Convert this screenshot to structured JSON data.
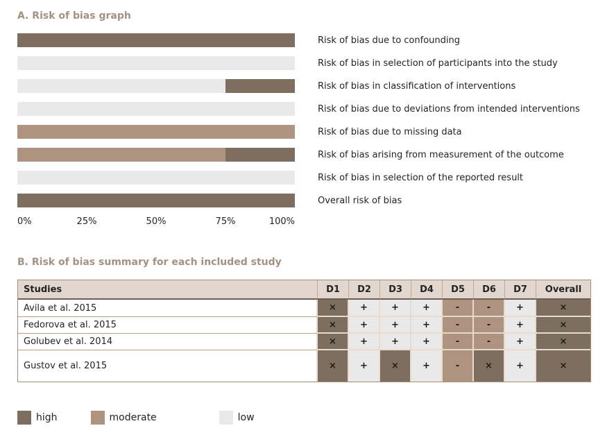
{
  "colors": {
    "high": "#7e6e5f",
    "moderate": "#ae9480",
    "low": "#e9e9e9",
    "header_bg": "#e1d7cf",
    "title_text": "#a39181",
    "body_text": "#232323"
  },
  "section_a": {
    "title": "A. Risk of bias graph",
    "axis_ticks": [
      "0%",
      "25%",
      "50%",
      "75%",
      "100%"
    ],
    "bars": [
      {
        "label": "Risk of bias due to confounding",
        "segments": [
          {
            "level": "high",
            "pct": 100
          }
        ]
      },
      {
        "label": "Risk of bias in selection of participants into the study",
        "segments": [
          {
            "level": "low",
            "pct": 100
          }
        ]
      },
      {
        "label": "Risk of bias in classification of interventions",
        "segments": [
          {
            "level": "low",
            "pct": 75
          },
          {
            "level": "high",
            "pct": 25
          }
        ]
      },
      {
        "label": "Risk of bias due to deviations from intended interventions",
        "segments": [
          {
            "level": "low",
            "pct": 100
          }
        ]
      },
      {
        "label": "Risk of bias due to missing data",
        "segments": [
          {
            "level": "moderate",
            "pct": 100
          }
        ]
      },
      {
        "label": "Risk of bias arising from measurement of the outcome",
        "segments": [
          {
            "level": "moderate",
            "pct": 75
          },
          {
            "level": "high",
            "pct": 25
          }
        ]
      },
      {
        "label": "Risk of bias in selection of the reported result",
        "segments": [
          {
            "level": "low",
            "pct": 100
          }
        ]
      },
      {
        "label": "Overall risk of bias",
        "segments": [
          {
            "level": "high",
            "pct": 100
          }
        ]
      }
    ]
  },
  "section_b": {
    "title": "B. Risk of bias summary for each included study",
    "columns": [
      "Studies",
      "D1",
      "D2",
      "D3",
      "D4",
      "D5",
      "D6",
      "D7",
      "Overall"
    ],
    "symbols": {
      "high": "×",
      "moderate": "-",
      "low": "+"
    },
    "rows": [
      {
        "study": "Avila et al. 2015",
        "judgments": [
          "high",
          "low",
          "low",
          "low",
          "moderate",
          "moderate",
          "low",
          "high"
        ]
      },
      {
        "study": "Fedorova et al. 2015",
        "judgments": [
          "high",
          "low",
          "low",
          "low",
          "moderate",
          "moderate",
          "low",
          "high"
        ]
      },
      {
        "study": "Golubev et al. 2014",
        "judgments": [
          "high",
          "low",
          "low",
          "low",
          "moderate",
          "moderate",
          "low",
          "high"
        ]
      },
      {
        "study": "Gustov et al. 2015",
        "judgments": [
          "high",
          "low",
          "high",
          "low",
          "moderate",
          "high",
          "low",
          "high"
        ]
      }
    ]
  },
  "legend": [
    {
      "level": "high",
      "label": "high"
    },
    {
      "level": "moderate",
      "label": "moderate"
    },
    {
      "level": "low",
      "label": "low"
    }
  ],
  "chart_data": [
    {
      "type": "bar",
      "title": "A. Risk of bias graph",
      "orientation": "horizontal",
      "stacked": true,
      "categories": [
        "Risk of bias due to confounding",
        "Risk of bias in selection of participants into the study",
        "Risk of bias in classification of interventions",
        "Risk of bias due to deviations from intended interventions",
        "Risk of bias due to missing data",
        "Risk of bias arising from measurement of the outcome",
        "Risk of bias in selection of the reported result",
        "Overall risk of bias"
      ],
      "series": [
        {
          "name": "high",
          "values": [
            100,
            0,
            25,
            0,
            0,
            25,
            0,
            100
          ]
        },
        {
          "name": "moderate",
          "values": [
            0,
            0,
            0,
            0,
            100,
            75,
            0,
            0
          ]
        },
        {
          "name": "low",
          "values": [
            0,
            100,
            75,
            100,
            0,
            0,
            100,
            0
          ]
        }
      ],
      "xlabel": "",
      "ylabel": "",
      "xlim": [
        0,
        100
      ],
      "x_tick_labels": [
        "0%",
        "25%",
        "50%",
        "75%",
        "100%"
      ],
      "grid": false,
      "legend_position": "bottom"
    },
    {
      "type": "table",
      "title": "B. Risk of bias summary for each included study",
      "columns": [
        "Studies",
        "D1",
        "D2",
        "D3",
        "D4",
        "D5",
        "D6",
        "D7",
        "Overall"
      ],
      "rows": [
        [
          "Avila et al. 2015",
          "high",
          "low",
          "low",
          "low",
          "moderate",
          "moderate",
          "low",
          "high"
        ],
        [
          "Fedorova et al. 2015",
          "high",
          "low",
          "low",
          "low",
          "moderate",
          "moderate",
          "low",
          "high"
        ],
        [
          "Golubev et al. 2014",
          "high",
          "low",
          "low",
          "low",
          "moderate",
          "moderate",
          "low",
          "high"
        ],
        [
          "Gustov et al. 2015",
          "high",
          "low",
          "high",
          "low",
          "moderate",
          "high",
          "low",
          "high"
        ]
      ]
    }
  ]
}
